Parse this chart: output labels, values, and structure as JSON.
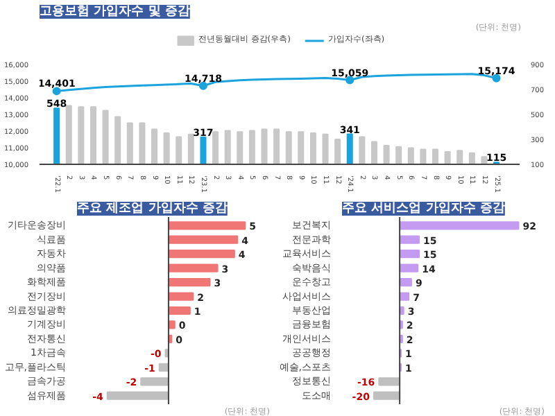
{
  "chart_data": [
    {
      "type": "bar",
      "title": "고용보험 가입자수 및 증감",
      "annotations": [
        "(단위: 천명)"
      ],
      "legend": "top",
      "grid": false,
      "categories": [
        "'22.1",
        "2",
        "3",
        "4",
        "5",
        "6",
        "7",
        "8",
        "9",
        "10",
        "11",
        "12",
        "'23.1",
        "2",
        "3",
        "4",
        "5",
        "6",
        "7",
        "8",
        "9",
        "10",
        "11",
        "12",
        "'24.1",
        "2",
        "3",
        "4",
        "5",
        "6",
        "7",
        "8",
        "9",
        "10",
        "11",
        "12",
        "'25.1"
      ],
      "ylim": [
        10000,
        16000
      ],
      "yticks": [
        {
          "value": 10000,
          "label": "10,000"
        },
        {
          "value": 11000,
          "label": "11,000"
        },
        {
          "value": 12000,
          "label": "12,000"
        },
        {
          "value": 13000,
          "label": "13,000"
        },
        {
          "value": 14000,
          "label": "14,000"
        },
        {
          "value": 15000,
          "label": "15,000"
        },
        {
          "value": 16000,
          "label": "16,000"
        }
      ],
      "y2lim": [
        100,
        900
      ],
      "y2ticks": [
        100,
        300,
        500,
        700,
        900
      ],
      "series": [
        {
          "name": "전년동월대비 증감(우측)",
          "type": "bar",
          "axis": "y2",
          "values": [
            548,
            570,
            560,
            560,
            530,
            480,
            430,
            430,
            380,
            350,
            320,
            340,
            317,
            360,
            370,
            360,
            370,
            380,
            380,
            360,
            360,
            350,
            340,
            300,
            341,
            320,
            280,
            250,
            240,
            230,
            220,
            220,
            200,
            210,
            190,
            160,
            115
          ],
          "colors": [
            "#1aa3dc",
            "#c8c8c8",
            "#c8c8c8",
            "#c8c8c8",
            "#c8c8c8",
            "#c8c8c8",
            "#c8c8c8",
            "#c8c8c8",
            "#c8c8c8",
            "#c8c8c8",
            "#c8c8c8",
            "#c8c8c8",
            "#1aa3dc",
            "#c8c8c8",
            "#c8c8c8",
            "#c8c8c8",
            "#c8c8c8",
            "#c8c8c8",
            "#c8c8c8",
            "#c8c8c8",
            "#c8c8c8",
            "#c8c8c8",
            "#c8c8c8",
            "#c8c8c8",
            "#1aa3dc",
            "#c8c8c8",
            "#c8c8c8",
            "#c8c8c8",
            "#c8c8c8",
            "#c8c8c8",
            "#c8c8c8",
            "#c8c8c8",
            "#c8c8c8",
            "#c8c8c8",
            "#c8c8c8",
            "#c8c8c8",
            "#1aa3dc"
          ],
          "color": "#c8c8c8",
          "value_labels": [
            "548",
            null,
            null,
            null,
            null,
            null,
            null,
            null,
            null,
            null,
            null,
            null,
            "317",
            null,
            null,
            null,
            null,
            null,
            null,
            null,
            null,
            null,
            null,
            null,
            "341",
            null,
            null,
            null,
            null,
            null,
            null,
            null,
            null,
            null,
            null,
            null,
            "115"
          ]
        },
        {
          "name": "가입자수(좌측)",
          "type": "line",
          "axis": "y",
          "color": "#1aa3dc",
          "values": [
            14401,
            14470,
            14530,
            14590,
            14650,
            14680,
            14710,
            14740,
            14760,
            14790,
            14820,
            14850,
            14718,
            14950,
            15000,
            15050,
            15080,
            15100,
            15120,
            15140,
            15150,
            15170,
            15190,
            15150,
            15059,
            15250,
            15300,
            15330,
            15350,
            15370,
            15390,
            15400,
            15410,
            15420,
            15430,
            15350,
            15174
          ],
          "value_labels": [
            "14,401",
            null,
            null,
            null,
            null,
            null,
            null,
            null,
            null,
            null,
            null,
            null,
            "14,718",
            null,
            null,
            null,
            null,
            null,
            null,
            null,
            null,
            null,
            null,
            null,
            "15,059",
            null,
            null,
            null,
            null,
            null,
            null,
            null,
            null,
            null,
            null,
            null,
            "15,174"
          ]
        }
      ]
    },
    {
      "type": "bar",
      "orientation": "horizontal",
      "title": "주요 제조업 가입자수 증감",
      "annotations": [
        "(단위: 천명)"
      ],
      "categories": [
        "기타운송장비",
        "식료품",
        "자동차",
        "의약품",
        "화학제품",
        "전기장비",
        "의료정밀광학",
        "기계장비",
        "전자통신",
        "1차금속",
        "고무,플라스틱",
        "금속가공",
        "섬유제품"
      ],
      "values": [
        5.0,
        4.5,
        4.3,
        3.2,
        2.7,
        1.6,
        1.4,
        0.4,
        0.2,
        -0.2,
        -0.6,
        -1.8,
        -4.0
      ],
      "value_labels": [
        "5",
        "4",
        "4",
        "3",
        "3",
        "2",
        "1",
        "0",
        "0",
        "-0",
        "-1",
        "-2",
        "-4"
      ],
      "colors": [
        "#f07575",
        "#f07575",
        "#f07575",
        "#f07575",
        "#f07575",
        "#f07575",
        "#f07575",
        "#f07575",
        "#f07575",
        "#bfbfbf",
        "#bfbfbf",
        "#bfbfbf",
        "#bfbfbf"
      ]
    },
    {
      "type": "bar",
      "orientation": "horizontal",
      "title": "주요 서비스업 가입자수 증감",
      "annotations": [
        "(단위: 천명)"
      ],
      "categories": [
        "보건복지",
        "전문과학",
        "교육서비스",
        "숙박음식",
        "운수창고",
        "사업서비스",
        "부동산업",
        "금융보험",
        "개인서비스",
        "공공행정",
        "예술,스포츠",
        "정보통신",
        "도소매"
      ],
      "values": [
        92,
        15,
        15,
        14,
        9,
        7,
        3,
        2,
        2,
        1,
        1,
        -16,
        -20
      ],
      "data_labels": true,
      "colors": [
        "#c39bf0",
        "#c39bf0",
        "#c39bf0",
        "#c39bf0",
        "#c39bf0",
        "#c39bf0",
        "#c39bf0",
        "#c39bf0",
        "#c39bf0",
        "#c39bf0",
        "#c39bf0",
        "#bfbfbf",
        "#bfbfbf"
      ]
    }
  ]
}
